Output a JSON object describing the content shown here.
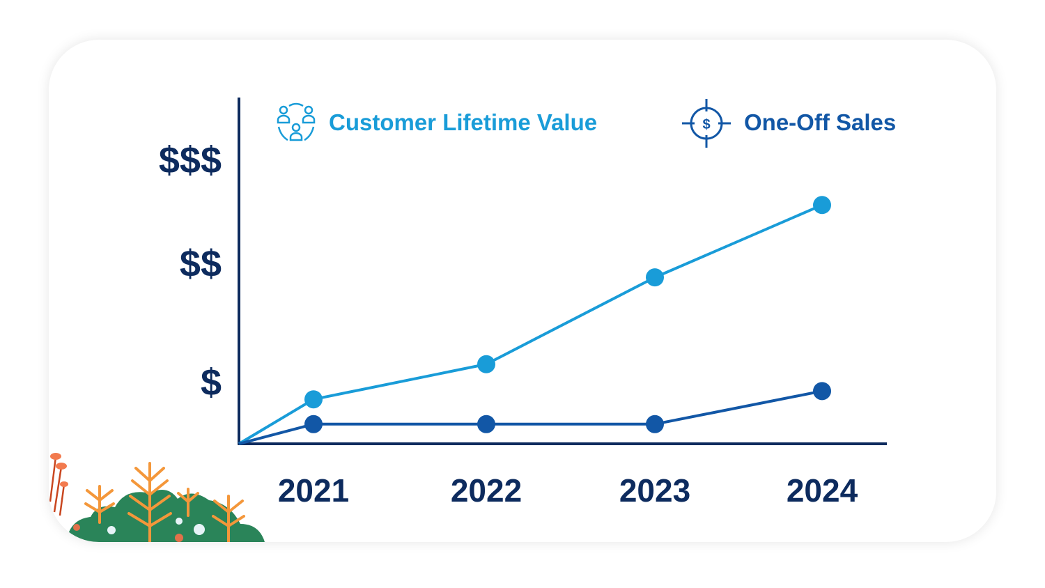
{
  "chart_data": {
    "type": "line",
    "title": "",
    "xlabel": "",
    "ylabel": "",
    "categories": [
      "2021",
      "2022",
      "2023",
      "2024"
    ],
    "y_ticks": [
      {
        "label": "$",
        "value": 0.6
      },
      {
        "label": "$$",
        "value": 1.75
      },
      {
        "label": "$$$",
        "value": 2.75
      }
    ],
    "ylim": [
      0,
      3.35
    ],
    "grid": false,
    "legend_placement": "top",
    "lines_start_at_origin": true,
    "series": [
      {
        "name": "Customer Lifetime Value",
        "icon": "people-network-icon",
        "color": "#199cd8",
        "values": [
          0.43,
          0.77,
          1.61,
          2.31
        ]
      },
      {
        "name": "One-Off Sales",
        "icon": "dollar-target-icon",
        "color": "#1257a6",
        "values": [
          0.19,
          0.19,
          0.19,
          0.51
        ]
      }
    ],
    "axis_color": "#0d2b5e"
  }
}
